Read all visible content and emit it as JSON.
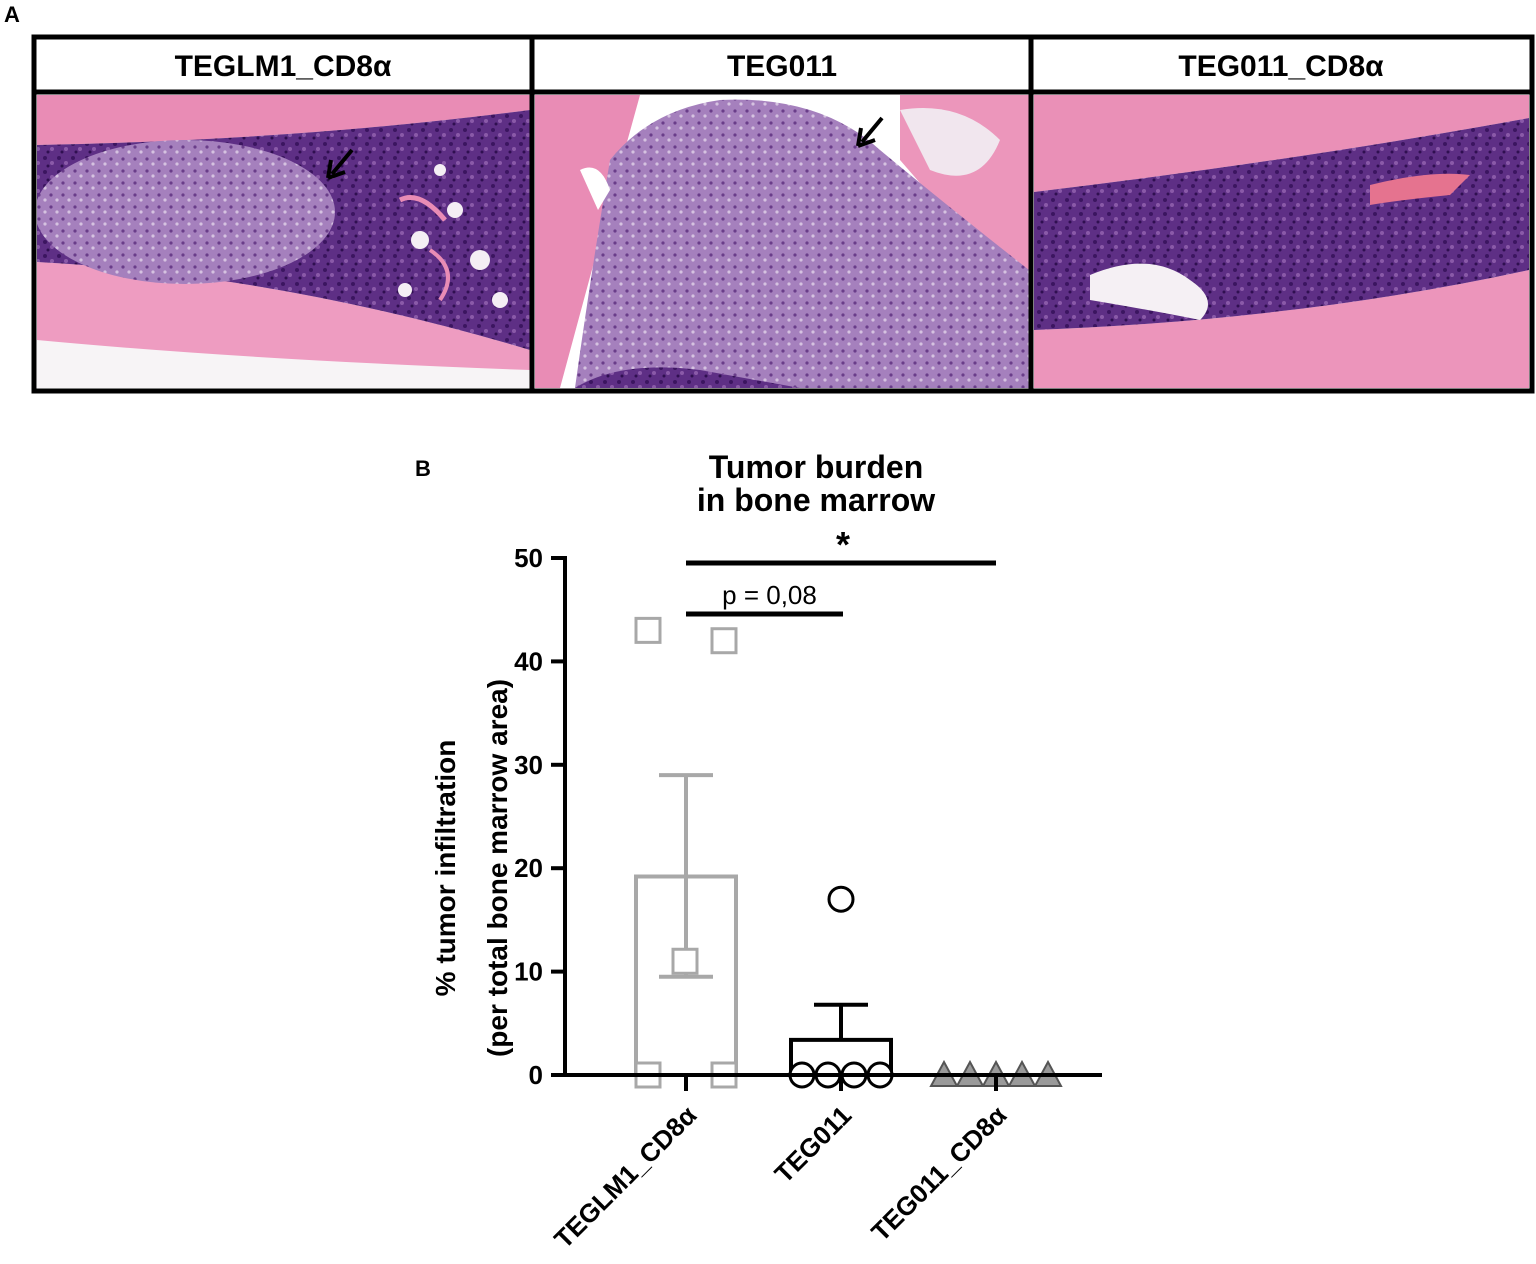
{
  "panel_a": {
    "letter": "A",
    "panels": [
      {
        "title": "TEGLM1_CD8α",
        "arrow": true
      },
      {
        "title": "TEG011",
        "arrow": true
      },
      {
        "title": "TEG011_CD8α",
        "arrow": false
      }
    ],
    "colors": {
      "bone": "#e98cb5",
      "marrow": "#6f3f90",
      "background": "#f5f3f5",
      "border": "#000000"
    }
  },
  "panel_b": {
    "letter": "B"
  },
  "chart_data": {
    "type": "bar",
    "title": "Tumor burden in bone marrow",
    "title_lines": [
      "Tumor burden",
      "in bone marrow"
    ],
    "ylabel_lines": [
      "% tumor infiltration",
      "(per total bone marrow area)"
    ],
    "xlabel": "",
    "ylim": [
      0,
      50
    ],
    "yticks": [
      0,
      10,
      20,
      30,
      40,
      50
    ],
    "categories": [
      "TEGLM1_CD8α",
      "TEG011",
      "TEG011_CD8α"
    ],
    "series": [
      {
        "mean": 19.2,
        "sem_upper": 29.0,
        "sem_lower": 9.5,
        "color": "#a8a8a8",
        "marker": "square",
        "marker_fill": "#ffffff",
        "points": [
          0,
          0,
          11,
          42,
          43
        ]
      },
      {
        "mean": 3.4,
        "sem_upper": 6.8,
        "sem_lower": 0,
        "color": "#000000",
        "marker": "circle",
        "marker_fill": "#ffffff",
        "points": [
          0,
          0,
          0,
          0,
          17
        ]
      },
      {
        "mean": 0,
        "sem_upper": 0,
        "sem_lower": 0,
        "color": "#000000",
        "marker": "triangle",
        "marker_fill": "#9a9a9a",
        "points": [
          0,
          0,
          0,
          0,
          0
        ]
      }
    ],
    "annotations": [
      {
        "from": "TEGLM1_CD8α",
        "to": "TEG011",
        "label": "p = 0,08"
      },
      {
        "from": "TEGLM1_CD8α",
        "to": "TEG011_CD8α",
        "label": "*"
      }
    ]
  }
}
